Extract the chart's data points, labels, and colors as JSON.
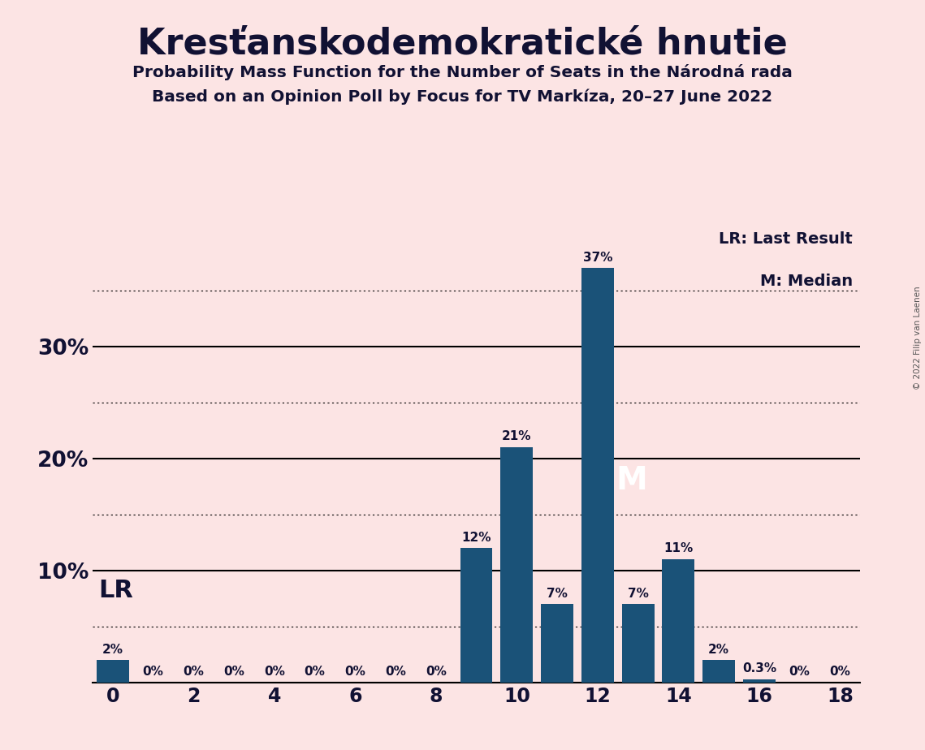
{
  "title": "Kresťanskodemokratické hnutie",
  "subtitle1": "Probability Mass Function for the Number of Seats in the Národná rada",
  "subtitle2": "Based on an Opinion Poll by Focus for TV Markíza, 20–27 June 2022",
  "copyright": "© 2022 Filip van Laenen",
  "background_color": "#fce4e4",
  "bar_color": "#1a5278",
  "seats": [
    0,
    1,
    2,
    3,
    4,
    5,
    6,
    7,
    8,
    9,
    10,
    11,
    12,
    13,
    14,
    15,
    16,
    17,
    18
  ],
  "probabilities": [
    0.02,
    0.0,
    0.0,
    0.0,
    0.0,
    0.0,
    0.0,
    0.0,
    0.0,
    0.12,
    0.21,
    0.07,
    0.37,
    0.07,
    0.11,
    0.02,
    0.003,
    0.0,
    0.0
  ],
  "labels": [
    "2%",
    "0%",
    "0%",
    "0%",
    "0%",
    "0%",
    "0%",
    "0%",
    "0%",
    "12%",
    "21%",
    "7%",
    "37%",
    "7%",
    "11%",
    "2%",
    "0.3%",
    "0%",
    "0%"
  ],
  "show_label": [
    true,
    true,
    true,
    true,
    true,
    true,
    true,
    true,
    true,
    true,
    true,
    true,
    true,
    true,
    true,
    true,
    true,
    true,
    true
  ],
  "lr_seat": 0,
  "median_seat": 12,
  "solid_yticks": [
    0.0,
    0.1,
    0.2,
    0.3
  ],
  "dotted_yticks": [
    0.05,
    0.15,
    0.25,
    0.35
  ],
  "xlim": [
    -0.5,
    18.5
  ],
  "ylim": [
    0,
    0.415
  ]
}
